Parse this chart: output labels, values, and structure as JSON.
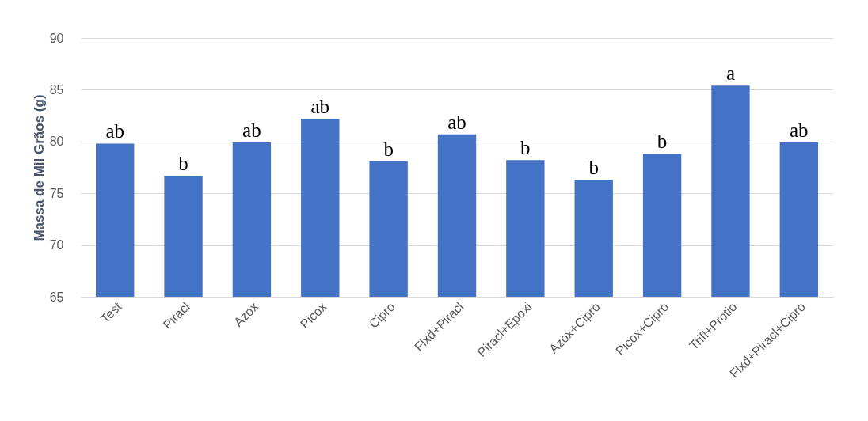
{
  "chart_data": {
    "type": "bar",
    "ylabel": "Massa de Mil Grãos (g)",
    "categories": [
      "Test",
      "Piracl",
      "Azox",
      "Picox",
      "Cipro",
      "Flxd+Piracl",
      "Piracl+Epoxi",
      "Azox+Cipro",
      "Picox+Cipro",
      "Trifl+Protio",
      "Flxd+Piracl+Cipro"
    ],
    "values": [
      79.8,
      76.7,
      79.9,
      82.2,
      78.1,
      80.7,
      78.2,
      76.3,
      78.8,
      85.4,
      79.9
    ],
    "color": "#4472c4",
    "ylim": [
      65,
      90
    ],
    "yticks": [
      65,
      70,
      75,
      80,
      85,
      90
    ],
    "grid": "y",
    "annotations": [
      {
        "text": "ab",
        "x": "Test",
        "y": 79.8
      },
      {
        "text": "b",
        "x": "Piracl",
        "y": 76.7
      },
      {
        "text": "ab",
        "x": "Azox",
        "y": 79.9
      },
      {
        "text": "ab",
        "x": "Picox",
        "y": 82.2
      },
      {
        "text": "b",
        "x": "Cipro",
        "y": 78.1
      },
      {
        "text": "ab",
        "x": "Flxd+Piracl",
        "y": 80.7
      },
      {
        "text": "b",
        "x": "Piracl+Epoxi",
        "y": 78.2
      },
      {
        "text": "b",
        "x": "Azox+Cipro",
        "y": 76.3
      },
      {
        "text": "b",
        "x": "Picox+Cipro",
        "y": 78.8
      },
      {
        "text": "a",
        "x": "Trifl+Protio",
        "y": 85.4
      },
      {
        "text": "ab",
        "x": "Flxd+Piracl+Cipro",
        "y": 79.9
      }
    ]
  }
}
